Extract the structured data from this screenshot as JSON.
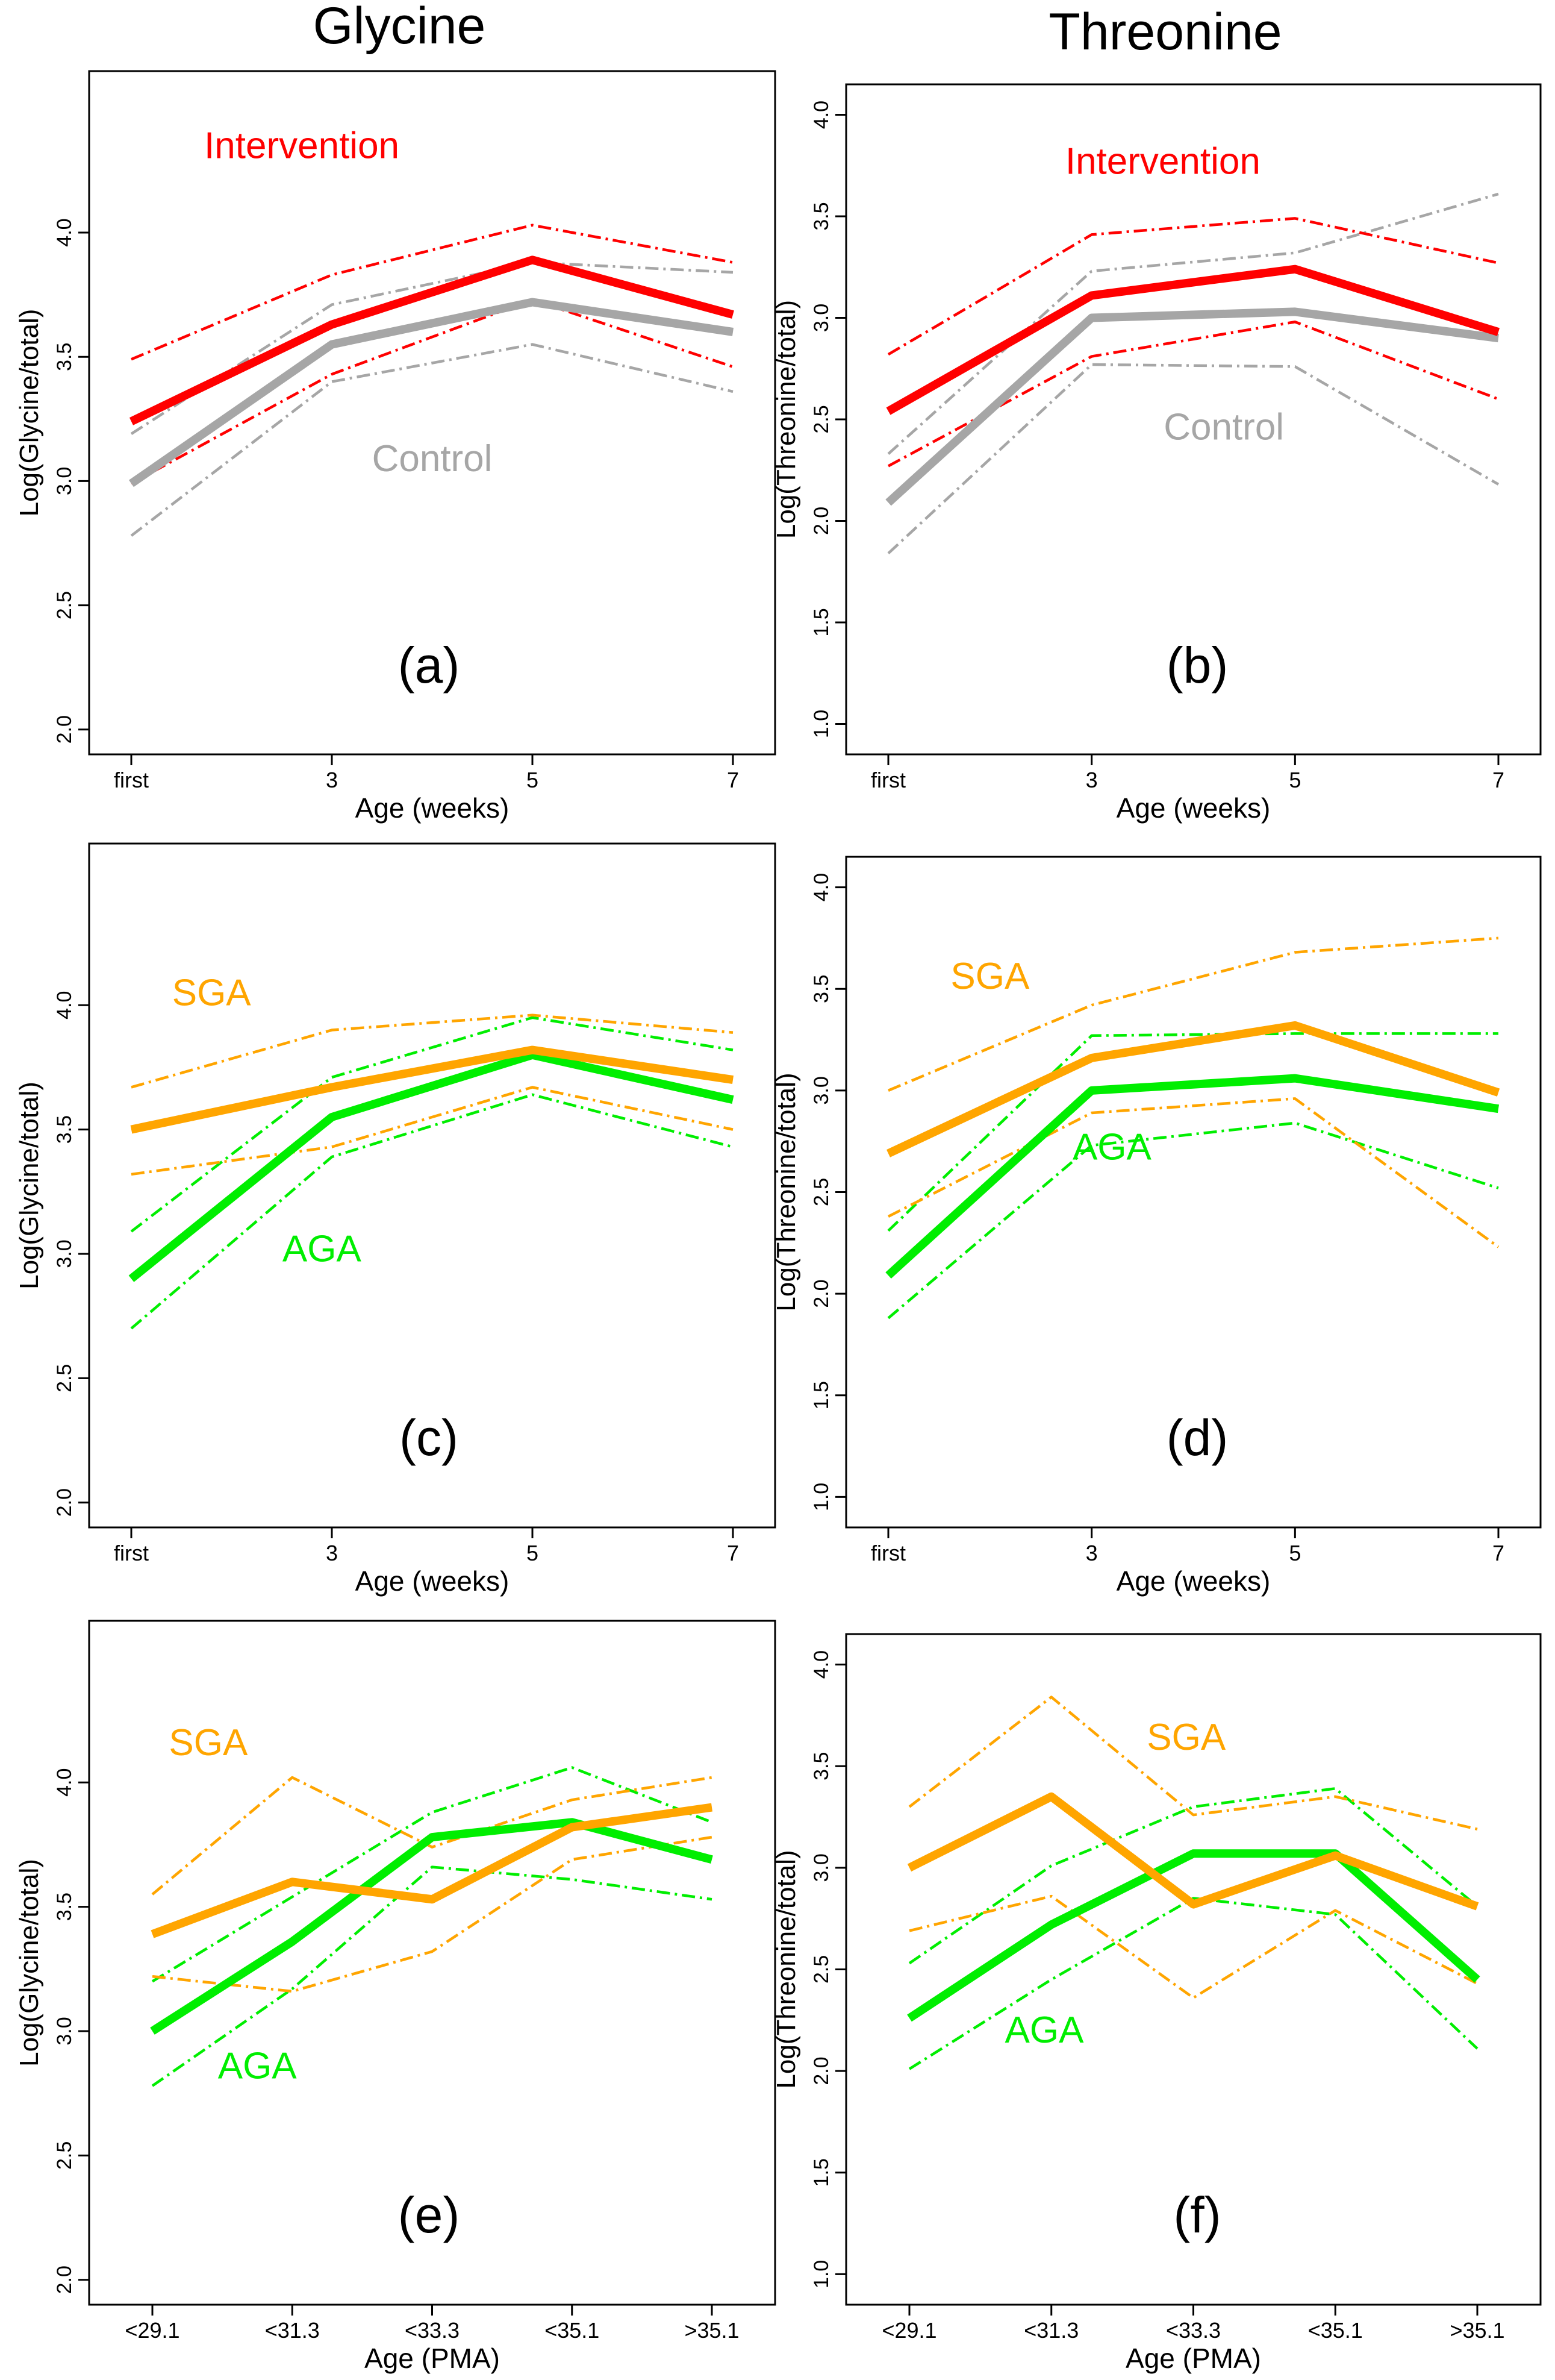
{
  "column_titles": [
    "Glycine",
    "Threonine"
  ],
  "colors": {
    "intervention": "#ff0000",
    "control": "#a6a6a6",
    "sga": "#ffa500",
    "aga": "#00ee00",
    "axis": "#000000"
  },
  "chart_data": [
    {
      "id": "a",
      "panel_label": "(a)",
      "type": "line",
      "xlabel": "Age (weeks)",
      "ylabel": "Log(Glycine/total)",
      "categories": [
        "first",
        "3",
        "5",
        "7"
      ],
      "ylim": [
        1.9,
        4.65
      ],
      "yticks": [
        "2.0",
        "2.5",
        "3.0",
        "3.5",
        "4.0"
      ],
      "series": [
        {
          "name": "Control",
          "role": "mean",
          "color": "#a6a6a6",
          "values": [
            2.99,
            3.55,
            3.72,
            3.6
          ]
        },
        {
          "name": "Control",
          "role": "band",
          "color": "#a6a6a6",
          "values": [
            3.19,
            3.71,
            3.88,
            3.84
          ]
        },
        {
          "name": "Control",
          "role": "band",
          "color": "#a6a6a6",
          "values": [
            2.78,
            3.4,
            3.55,
            3.36
          ]
        },
        {
          "name": "Intervention",
          "role": "mean",
          "color": "#ff0000",
          "values": [
            3.24,
            3.63,
            3.89,
            3.67
          ]
        },
        {
          "name": "Intervention",
          "role": "band",
          "color": "#ff0000",
          "values": [
            3.49,
            3.83,
            4.03,
            3.88
          ]
        },
        {
          "name": "Intervention",
          "role": "band",
          "color": "#ff0000",
          "values": [
            2.99,
            3.43,
            3.73,
            3.46
          ]
        }
      ],
      "annotations": [
        {
          "text": "Intervention",
          "color": "#ff0000",
          "x": 0.85,
          "y": 4.3
        },
        {
          "text": "Control",
          "color": "#a6a6a6",
          "x": 1.5,
          "y": 3.04
        }
      ]
    },
    {
      "id": "b",
      "panel_label": "(b)",
      "type": "line",
      "xlabel": "Age (weeks)",
      "ylabel": "Log(Threonine/total)",
      "categories": [
        "first",
        "3",
        "5",
        "7"
      ],
      "ylim": [
        0.85,
        4.15
      ],
      "yticks": [
        "1.0",
        "1.5",
        "2.0",
        "2.5",
        "3.0",
        "3.5",
        "4.0"
      ],
      "series": [
        {
          "name": "Control",
          "role": "mean",
          "color": "#a6a6a6",
          "values": [
            2.09,
            3.0,
            3.03,
            2.9
          ]
        },
        {
          "name": "Control",
          "role": "band",
          "color": "#a6a6a6",
          "values": [
            2.33,
            3.23,
            3.32,
            3.61
          ]
        },
        {
          "name": "Control",
          "role": "band",
          "color": "#a6a6a6",
          "values": [
            1.84,
            2.77,
            2.76,
            2.18
          ]
        },
        {
          "name": "Intervention",
          "role": "mean",
          "color": "#ff0000",
          "values": [
            2.54,
            3.11,
            3.24,
            2.93
          ]
        },
        {
          "name": "Intervention",
          "role": "band",
          "color": "#ff0000",
          "values": [
            2.82,
            3.41,
            3.49,
            3.27
          ]
        },
        {
          "name": "Intervention",
          "role": "band",
          "color": "#ff0000",
          "values": [
            2.27,
            2.81,
            2.98,
            2.6
          ]
        }
      ],
      "annotations": [
        {
          "text": "Intervention",
          "color": "#ff0000",
          "x": 1.35,
          "y": 3.71
        },
        {
          "text": "Control",
          "color": "#a6a6a6",
          "x": 1.65,
          "y": 2.4
        }
      ]
    },
    {
      "id": "c",
      "panel_label": "(c)",
      "type": "line",
      "xlabel": "Age (weeks)",
      "ylabel": "Log(Glycine/total)",
      "categories": [
        "first",
        "3",
        "5",
        "7"
      ],
      "ylim": [
        1.9,
        4.65
      ],
      "yticks": [
        "2.0",
        "2.5",
        "3.0",
        "3.5",
        "4.0"
      ],
      "series": [
        {
          "name": "AGA",
          "role": "mean",
          "color": "#00ee00",
          "values": [
            2.9,
            3.55,
            3.8,
            3.62
          ]
        },
        {
          "name": "AGA",
          "role": "band",
          "color": "#00ee00",
          "values": [
            3.09,
            3.71,
            3.95,
            3.82
          ]
        },
        {
          "name": "AGA",
          "role": "band",
          "color": "#00ee00",
          "values": [
            2.7,
            3.39,
            3.64,
            3.43
          ]
        },
        {
          "name": "SGA",
          "role": "mean",
          "color": "#ffa500",
          "values": [
            3.5,
            3.67,
            3.82,
            3.7
          ]
        },
        {
          "name": "SGA",
          "role": "band",
          "color": "#ffa500",
          "values": [
            3.67,
            3.9,
            3.96,
            3.89
          ]
        },
        {
          "name": "SGA",
          "role": "band",
          "color": "#ffa500",
          "values": [
            3.32,
            3.43,
            3.67,
            3.5
          ]
        }
      ],
      "annotations": [
        {
          "text": "SGA",
          "color": "#ffa500",
          "x": 0.4,
          "y": 4.0
        },
        {
          "text": "AGA",
          "color": "#00ee00",
          "x": 0.95,
          "y": 2.97
        }
      ]
    },
    {
      "id": "d",
      "panel_label": "(d)",
      "type": "line",
      "xlabel": "Age (weeks)",
      "ylabel": "Log(Threonine/total)",
      "categories": [
        "first",
        "3",
        "5",
        "7"
      ],
      "ylim": [
        0.85,
        4.15
      ],
      "yticks": [
        "1.0",
        "1.5",
        "2.0",
        "2.5",
        "3.0",
        "3.5",
        "4.0"
      ],
      "series": [
        {
          "name": "AGA",
          "role": "mean",
          "color": "#00ee00",
          "values": [
            2.09,
            3.0,
            3.06,
            2.91
          ]
        },
        {
          "name": "AGA",
          "role": "band",
          "color": "#00ee00",
          "values": [
            2.31,
            3.27,
            3.28,
            3.28
          ]
        },
        {
          "name": "AGA",
          "role": "band",
          "color": "#00ee00",
          "values": [
            1.88,
            2.73,
            2.84,
            2.52
          ]
        },
        {
          "name": "SGA",
          "role": "mean",
          "color": "#ffa500",
          "values": [
            2.69,
            3.16,
            3.32,
            2.99
          ]
        },
        {
          "name": "SGA",
          "role": "band",
          "color": "#ffa500",
          "values": [
            3.0,
            3.42,
            3.68,
            3.75
          ]
        },
        {
          "name": "SGA",
          "role": "band",
          "color": "#ffa500",
          "values": [
            2.38,
            2.89,
            2.96,
            2.23
          ]
        }
      ],
      "annotations": [
        {
          "text": "SGA",
          "color": "#ffa500",
          "x": 0.5,
          "y": 3.5
        },
        {
          "text": "AGA",
          "color": "#00ee00",
          "x": 1.1,
          "y": 2.66
        }
      ]
    },
    {
      "id": "e",
      "panel_label": "(e)",
      "type": "line",
      "xlabel": "Age (PMA)",
      "ylabel": "Log(Glycine/total)",
      "categories": [
        "<29.1",
        "<31.3",
        "<33.3",
        "<35.1",
        ">35.1"
      ],
      "ylim": [
        1.9,
        4.65
      ],
      "yticks": [
        "2.0",
        "2.5",
        "3.0",
        "3.5",
        "4.0"
      ],
      "series": [
        {
          "name": "AGA",
          "role": "mean",
          "color": "#00ee00",
          "values": [
            3.0,
            3.36,
            3.78,
            3.84,
            3.69
          ]
        },
        {
          "name": "AGA",
          "role": "band",
          "color": "#00ee00",
          "values": [
            3.2,
            3.54,
            3.88,
            4.06,
            3.84
          ]
        },
        {
          "name": "AGA",
          "role": "band",
          "color": "#00ee00",
          "values": [
            2.78,
            3.17,
            3.66,
            3.61,
            3.53
          ]
        },
        {
          "name": "SGA",
          "role": "mean",
          "color": "#ffa500",
          "values": [
            3.39,
            3.6,
            3.53,
            3.82,
            3.9
          ]
        },
        {
          "name": "SGA",
          "role": "band",
          "color": "#ffa500",
          "values": [
            3.55,
            4.02,
            3.74,
            3.93,
            4.02
          ]
        },
        {
          "name": "SGA",
          "role": "band",
          "color": "#ffa500",
          "values": [
            3.22,
            3.16,
            3.32,
            3.69,
            3.78
          ]
        }
      ],
      "annotations": [
        {
          "text": "SGA",
          "color": "#ffa500",
          "x": 0.4,
          "y": 4.11
        },
        {
          "text": "AGA",
          "color": "#00ee00",
          "x": 0.75,
          "y": 2.81
        }
      ]
    },
    {
      "id": "f",
      "panel_label": "(f)",
      "type": "line",
      "xlabel": "Age (PMA)",
      "ylabel": "Log(Threonine/total)",
      "categories": [
        "<29.1",
        "<31.3",
        "<33.3",
        "<35.1",
        ">35.1"
      ],
      "ylim": [
        0.85,
        4.15
      ],
      "yticks": [
        "1.0",
        "1.5",
        "2.0",
        "2.5",
        "3.0",
        "3.5",
        "4.0"
      ],
      "series": [
        {
          "name": "AGA",
          "role": "mean",
          "color": "#00ee00",
          "values": [
            2.26,
            2.72,
            3.07,
            3.07,
            2.45
          ]
        },
        {
          "name": "AGA",
          "role": "band",
          "color": "#00ee00",
          "values": [
            2.53,
            3.01,
            3.3,
            3.39,
            2.81
          ]
        },
        {
          "name": "AGA",
          "role": "band",
          "color": "#00ee00",
          "values": [
            2.01,
            2.45,
            2.85,
            2.77,
            2.11
          ]
        },
        {
          "name": "SGA",
          "role": "mean",
          "color": "#ffa500",
          "values": [
            3.0,
            3.35,
            2.82,
            3.06,
            2.81
          ]
        },
        {
          "name": "SGA",
          "role": "band",
          "color": "#ffa500",
          "values": [
            3.3,
            3.84,
            3.26,
            3.35,
            3.19
          ]
        },
        {
          "name": "SGA",
          "role": "band",
          "color": "#ffa500",
          "values": [
            2.69,
            2.86,
            2.36,
            2.79,
            2.43
          ]
        }
      ],
      "annotations": [
        {
          "text": "SGA",
          "color": "#ffa500",
          "x": 1.95,
          "y": 3.58
        },
        {
          "text": "AGA",
          "color": "#00ee00",
          "x": 0.95,
          "y": 2.14
        }
      ]
    }
  ]
}
